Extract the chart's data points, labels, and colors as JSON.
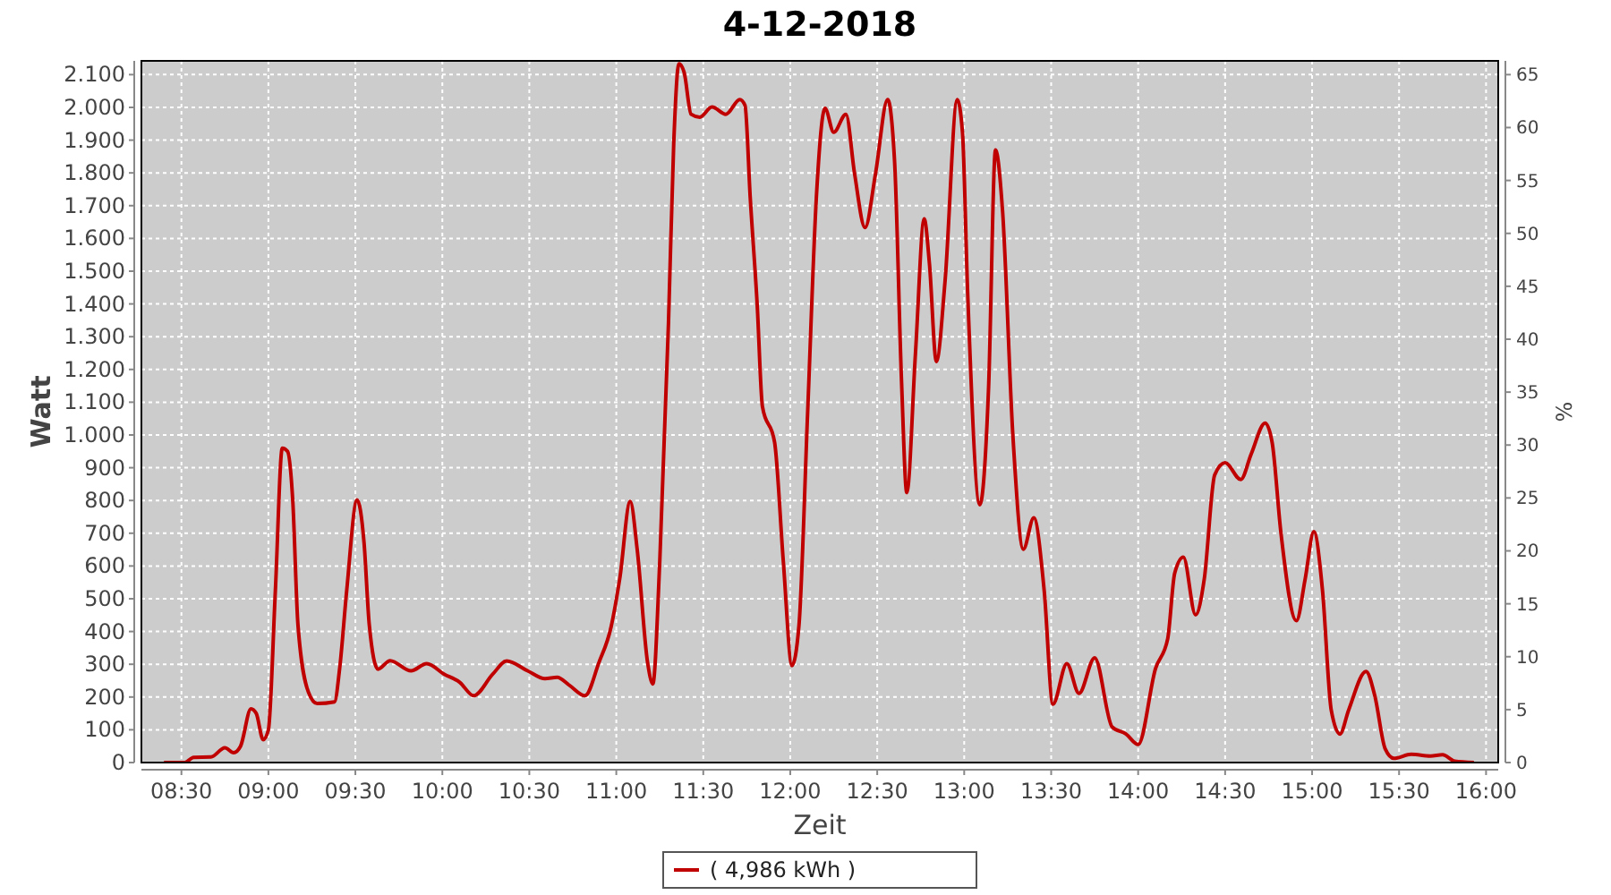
{
  "chart_data": {
    "type": "line",
    "title": "4-12-2018",
    "xlabel": "Zeit",
    "ylabel": "Watt",
    "y2label": "%",
    "x": [
      8.4,
      8.52,
      8.57,
      8.67,
      8.75,
      8.8,
      8.84,
      8.9,
      8.93,
      8.97,
      9.0,
      9.04,
      9.08,
      9.11,
      9.14,
      9.17,
      9.23,
      9.28,
      9.38,
      9.41,
      9.45,
      9.51,
      9.55,
      9.58,
      9.63,
      9.7,
      9.82,
      9.91,
      10.01,
      10.1,
      10.18,
      10.29,
      10.37,
      10.49,
      10.59,
      10.66,
      10.73,
      10.82,
      10.9,
      10.97,
      11.02,
      11.08,
      11.12,
      11.18,
      11.21,
      11.25,
      11.3,
      11.33,
      11.36,
      11.39,
      11.43,
      11.48,
      11.55,
      11.63,
      11.71,
      11.74,
      11.77,
      11.81,
      11.84,
      11.91,
      11.96,
      12.01,
      12.05,
      12.1,
      12.15,
      12.2,
      12.25,
      12.32,
      12.37,
      12.43,
      12.49,
      12.56,
      12.6,
      12.64,
      12.67,
      12.72,
      12.77,
      12.8,
      12.84,
      12.89,
      12.96,
      12.99,
      13.02,
      13.09,
      13.14,
      13.18,
      13.22,
      13.28,
      13.34,
      13.4,
      13.46,
      13.51,
      13.59,
      13.66,
      13.75,
      13.85,
      13.93,
      14.0,
      14.1,
      14.17,
      14.21,
      14.26,
      14.33,
      14.38,
      14.44,
      14.5,
      14.59,
      14.65,
      14.73,
      14.77,
      14.82,
      14.91,
      14.96,
      15.01,
      15.06,
      15.11,
      15.16,
      15.21,
      15.31,
      15.36,
      15.42,
      15.47,
      15.57,
      15.68,
      15.75,
      15.82,
      15.93
    ],
    "series": [
      {
        "name": "( 4,986 kWh )",
        "color": "#c00000",
        "values": [
          0,
          0,
          16,
          17,
          45,
          30,
          50,
          164,
          150,
          70,
          100,
          524,
          960,
          950,
          800,
          420,
          215,
          180,
          185,
          289,
          524,
          802,
          670,
          420,
          285,
          311,
          280,
          302,
          270,
          245,
          204,
          270,
          310,
          280,
          256,
          260,
          236,
          204,
          305,
          414,
          562,
          797,
          651,
          305,
          240,
          615,
          1342,
          1888,
          2133,
          2107,
          1979,
          1970,
          2001,
          1979,
          2024,
          2006,
          1724,
          1397,
          1087,
          978,
          615,
          296,
          418,
          1069,
          1724,
          1997,
          1924,
          1979,
          1797,
          1633,
          1797,
          2024,
          1833,
          1160,
          824,
          1251,
          1660,
          1524,
          1224,
          1470,
          2024,
          1924,
          1433,
          787,
          1142,
          1870,
          1688,
          997,
          651,
          747,
          524,
          178,
          302,
          211,
          320,
          109,
          87,
          55,
          287,
          378,
          578,
          627,
          451,
          560,
          878,
          915,
          864,
          942,
          1036,
          978,
          705,
          433,
          560,
          705,
          524,
          160,
          87,
          160,
          278,
          205,
          42,
          13,
          25,
          20,
          24,
          4,
          0
        ]
      }
    ],
    "xlim": [
      8.27,
      16.07
    ],
    "xticks": [
      {
        "value": 8.5,
        "label": "08:30"
      },
      {
        "value": 9,
        "label": "09:00"
      },
      {
        "value": 9.5,
        "label": "09:30"
      },
      {
        "value": 10,
        "label": "10:00"
      },
      {
        "value": 10.5,
        "label": "10:30"
      },
      {
        "value": 11,
        "label": "11:00"
      },
      {
        "value": 11.5,
        "label": "11:30"
      },
      {
        "value": 12,
        "label": "12:00"
      },
      {
        "value": 12.5,
        "label": "12:30"
      },
      {
        "value": 13,
        "label": "13:00"
      },
      {
        "value": 13.5,
        "label": "13:30"
      },
      {
        "value": 14,
        "label": "14:00"
      },
      {
        "value": 14.5,
        "label": "14:30"
      },
      {
        "value": 15,
        "label": "15:00"
      },
      {
        "value": 15.5,
        "label": "15:30"
      },
      {
        "value": 16,
        "label": "16:00"
      }
    ],
    "ylim": [
      0,
      2142
    ],
    "yticks": [
      0,
      100,
      200,
      300,
      400,
      500,
      600,
      700,
      800,
      900,
      {
        "value": 1000,
        "label": "1.000"
      },
      {
        "value": 1100,
        "label": "1.100"
      },
      {
        "value": 1200,
        "label": "1.200"
      },
      {
        "value": 1300,
        "label": "1.300"
      },
      {
        "value": 1400,
        "label": "1.400"
      },
      {
        "value": 1500,
        "label": "1.500"
      },
      {
        "value": 1600,
        "label": "1.600"
      },
      {
        "value": 1700,
        "label": "1.700"
      },
      {
        "value": 1800,
        "label": "1.800"
      },
      {
        "value": 1900,
        "label": "1.900"
      },
      {
        "value": 2000,
        "label": "2.000"
      },
      {
        "value": 2100,
        "label": "2.100"
      }
    ],
    "y2lim": [
      0,
      66.3
    ],
    "y2ticks": [
      0,
      5,
      10,
      15,
      20,
      25,
      30,
      35,
      40,
      45,
      50,
      55,
      60,
      65
    ],
    "grid": true,
    "legend": "bottom",
    "marker": "none",
    "line_style": "solid"
  }
}
